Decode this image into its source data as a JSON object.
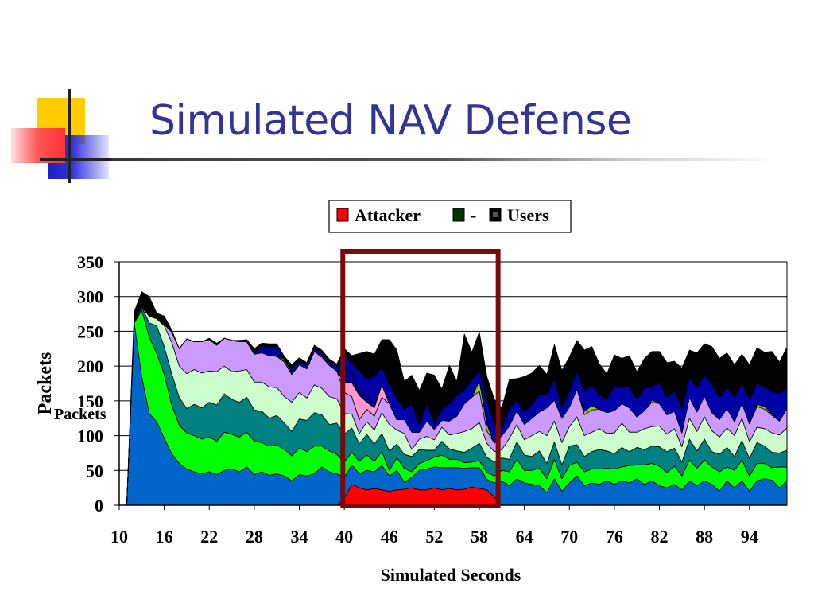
{
  "slide": {
    "title": "Simulated NAV Defense"
  },
  "chart_data": {
    "type": "area",
    "stacked": true,
    "xlabel": "Simulated Seconds",
    "ylabel": "Packets",
    "ylabel_overlay": "Packets",
    "ylim": [
      0,
      350
    ],
    "xlim": [
      10,
      99
    ],
    "yticks": [
      0,
      50,
      100,
      150,
      200,
      250,
      300,
      350
    ],
    "xticks": [
      10,
      16,
      22,
      28,
      34,
      40,
      46,
      52,
      58,
      64,
      70,
      76,
      82,
      88,
      94
    ],
    "grid": true,
    "legend": {
      "placement": "top-center",
      "entries": [
        "Attacker",
        "-",
        "Users"
      ]
    },
    "highlight": {
      "x_range": [
        39.8,
        60.5
      ],
      "color": "#7a0a0a"
    },
    "x": [
      10,
      11,
      12,
      13,
      14,
      15,
      16,
      17,
      18,
      19,
      20,
      21,
      22,
      23,
      24,
      25,
      26,
      27,
      28,
      29,
      30,
      31,
      32,
      33,
      34,
      35,
      36,
      37,
      38,
      39,
      40,
      41,
      42,
      43,
      44,
      45,
      46,
      47,
      48,
      49,
      50,
      51,
      52,
      53,
      54,
      55,
      56,
      57,
      58,
      59,
      60,
      61,
      62,
      63,
      64,
      65,
      66,
      67,
      68,
      69,
      70,
      71,
      72,
      73,
      74,
      75,
      76,
      77,
      78,
      79,
      80,
      81,
      82,
      83,
      84,
      85,
      86,
      87,
      88,
      89,
      90,
      91,
      92,
      93,
      94,
      95,
      96,
      97,
      98,
      99
    ],
    "series": [
      {
        "name": "Attacker",
        "color": "#ff0000",
        "values": [
          0,
          0,
          0,
          0,
          0,
          0,
          0,
          0,
          0,
          0,
          0,
          0,
          0,
          0,
          0,
          0,
          0,
          0,
          0,
          0,
          0,
          0,
          0,
          0,
          0,
          0,
          0,
          0,
          0,
          0,
          10,
          30,
          25,
          22,
          24,
          22,
          20,
          22,
          23,
          25,
          22,
          22,
          25,
          22,
          24,
          22,
          23,
          26,
          24,
          22,
          12,
          0,
          0,
          0,
          0,
          0,
          0,
          0,
          0,
          0,
          0,
          0,
          0,
          0,
          0,
          0,
          0,
          0,
          0,
          0,
          0,
          0,
          0,
          0,
          0,
          0,
          0,
          0,
          0,
          0,
          0,
          0,
          0,
          0,
          0,
          0,
          0,
          0,
          0,
          0
        ]
      },
      {
        "values": [
          0,
          0,
          262,
          185,
          132,
          120,
          96,
          74,
          60,
          52,
          48,
          45,
          48,
          44,
          50,
          52,
          48,
          55,
          44,
          48,
          43,
          45,
          42,
          35,
          44,
          42,
          45,
          55,
          48,
          45,
          30,
          28,
          20,
          28,
          24,
          35,
          22,
          28,
          10,
          15,
          28,
          30,
          30,
          32,
          30,
          32,
          30,
          28,
          30,
          15,
          20,
          35,
          28,
          38,
          32,
          30,
          28,
          18,
          38,
          20,
          32,
          42,
          28,
          32,
          30,
          35,
          30,
          35,
          32,
          38,
          30,
          35,
          28,
          25,
          30,
          22,
          35,
          28,
          35,
          30,
          20,
          35,
          25,
          35,
          20,
          35,
          38,
          36,
          25,
          35
        ]
      },
      {
        "values": [
          0,
          0,
          0,
          95,
          110,
          98,
          92,
          70,
          55,
          52,
          52,
          50,
          50,
          48,
          55,
          50,
          50,
          50,
          48,
          42,
          42,
          42,
          38,
          36,
          38,
          35,
          40,
          30,
          30,
          28,
          22,
          18,
          18,
          22,
          15,
          20,
          8,
          18,
          20,
          8,
          10,
          12,
          14,
          18,
          12,
          12,
          8,
          8,
          10,
          10,
          10,
          15,
          20,
          28,
          18,
          20,
          25,
          20,
          28,
          18,
          25,
          20,
          20,
          20,
          22,
          18,
          22,
          20,
          25,
          20,
          28,
          25,
          28,
          22,
          26,
          20,
          30,
          25,
          30,
          25,
          28,
          20,
          25,
          30,
          22,
          25,
          22,
          18,
          30,
          20
        ]
      },
      {
        "values": [
          0,
          0,
          0,
          5,
          20,
          40,
          40,
          45,
          40,
          35,
          45,
          45,
          50,
          52,
          55,
          50,
          50,
          50,
          45,
          45,
          40,
          42,
          38,
          35,
          42,
          45,
          48,
          45,
          38,
          45,
          40,
          35,
          25,
          30,
          25,
          26,
          28,
          20,
          20,
          22,
          20,
          15,
          10,
          20,
          15,
          12,
          15,
          20,
          25,
          22,
          20,
          18,
          18,
          25,
          22,
          20,
          25,
          22,
          25,
          20,
          28,
          25,
          22,
          25,
          28,
          25,
          22,
          28,
          20,
          25,
          22,
          25,
          28,
          30,
          26,
          20,
          30,
          25,
          30,
          22,
          25,
          28,
          20,
          28,
          25,
          30,
          25,
          22,
          20,
          24
        ]
      },
      {
        "values": [
          0,
          0,
          0,
          0,
          10,
          10,
          30,
          45,
          45,
          50,
          50,
          50,
          45,
          48,
          40,
          40,
          45,
          40,
          40,
          42,
          45,
          40,
          38,
          42,
          38,
          32,
          40,
          38,
          40,
          35,
          30,
          20,
          15,
          18,
          20,
          30,
          38,
          20,
          30,
          10,
          15,
          20,
          15,
          20,
          20,
          25,
          30,
          28,
          30,
          20,
          15,
          12,
          30,
          25,
          22,
          30,
          28,
          40,
          30,
          32,
          28,
          40,
          30,
          28,
          30,
          25,
          30,
          35,
          28,
          22,
          30,
          28,
          30,
          25,
          28,
          22,
          30,
          28,
          32,
          30,
          25,
          28,
          30,
          32,
          24,
          22,
          25,
          28,
          26,
          32
        ]
      },
      {
        "values": [
          0,
          0,
          0,
          0,
          0,
          0,
          2,
          15,
          25,
          50,
          40,
          45,
          45,
          38,
          40,
          45,
          42,
          40,
          40,
          42,
          45,
          45,
          50,
          40,
          40,
          42,
          48,
          45,
          45,
          40,
          30,
          25,
          20,
          18,
          20,
          22,
          30,
          15,
          20,
          25,
          10,
          22,
          15,
          10,
          20,
          25,
          40,
          45,
          45,
          18,
          12,
          20,
          18,
          20,
          22,
          25,
          28,
          40,
          30,
          35,
          28,
          40,
          30,
          32,
          28,
          30,
          32,
          28,
          35,
          22,
          26,
          35,
          32,
          28,
          25,
          20,
          30,
          28,
          30,
          26,
          25,
          28,
          20,
          22,
          26,
          30,
          28,
          25,
          20,
          28
        ]
      },
      {
        "values": [
          0,
          0,
          0,
          0,
          0,
          0,
          0,
          0,
          0,
          0,
          0,
          0,
          0,
          0,
          0,
          0,
          0,
          0,
          0,
          0,
          0,
          0,
          0,
          0,
          0,
          0,
          0,
          0,
          0,
          0,
          0,
          0,
          0,
          0,
          0,
          0,
          0,
          0,
          0,
          0,
          0,
          0,
          0,
          0,
          0,
          0,
          0,
          0,
          15,
          10,
          0,
          0,
          0,
          0,
          0,
          0,
          0,
          0,
          0,
          0,
          0,
          0,
          5,
          6,
          0,
          0,
          0,
          0,
          0,
          0,
          0,
          3,
          0,
          0,
          0,
          0,
          0,
          0,
          0,
          0,
          0,
          0,
          0,
          0,
          0,
          3,
          4,
          2,
          0,
          0
        ]
      },
      {
        "values": [
          0,
          0,
          0,
          0,
          0,
          0,
          0,
          0,
          0,
          0,
          0,
          0,
          0,
          0,
          0,
          0,
          0,
          0,
          0,
          0,
          0,
          0,
          0,
          0,
          0,
          0,
          0,
          0,
          0,
          0,
          15,
          20,
          35,
          10,
          12,
          18,
          0,
          0,
          0,
          0,
          0,
          0,
          0,
          0,
          0,
          0,
          0,
          0,
          0,
          0,
          0,
          0,
          0,
          0,
          0,
          0,
          0,
          0,
          0,
          0,
          0,
          0,
          0,
          0,
          0,
          0,
          0,
          0,
          0,
          0,
          0,
          0,
          0,
          0,
          0,
          0,
          0,
          0,
          0,
          0,
          0,
          0,
          0,
          0,
          0,
          0,
          0,
          0,
          0,
          0
        ]
      },
      {
        "values": [
          0,
          0,
          0,
          0,
          0,
          0,
          0,
          0,
          0,
          0,
          0,
          0,
          0,
          0,
          0,
          0,
          0,
          0,
          0,
          0,
          0,
          0,
          5,
          3,
          0,
          0,
          0,
          0,
          0,
          0,
          0,
          0,
          0,
          0,
          0,
          0,
          0,
          0,
          0,
          0,
          0,
          0,
          0,
          0,
          0,
          0,
          0,
          0,
          0,
          0,
          0,
          0,
          0,
          0,
          0,
          0,
          0,
          0,
          0,
          0,
          0,
          0,
          0,
          0,
          0,
          0,
          0,
          0,
          0,
          0,
          0,
          0,
          0,
          0,
          0,
          0,
          0,
          0,
          0,
          0,
          0,
          0,
          0,
          0,
          0,
          0,
          0,
          0,
          0,
          0
        ]
      },
      {
        "values": [
          0,
          0,
          0,
          0,
          0,
          0,
          0,
          0,
          0,
          0,
          0,
          0,
          0,
          0,
          0,
          0,
          0,
          0,
          0,
          10,
          12,
          15,
          0,
          0,
          0,
          0,
          0,
          0,
          0,
          0,
          20,
          15,
          5,
          8,
          5,
          0,
          0,
          0,
          0,
          0,
          0,
          0,
          0,
          0,
          0,
          0,
          0,
          0,
          0,
          0,
          0,
          0,
          0,
          0,
          0,
          0,
          0,
          0,
          0,
          0,
          0,
          0,
          0,
          0,
          0,
          0,
          0,
          0,
          0,
          0,
          0,
          0,
          0,
          0,
          0,
          0,
          0,
          0,
          0,
          0,
          0,
          0,
          0,
          0,
          0,
          0,
          0,
          0,
          0,
          0
        ]
      },
      {
        "values": [
          0,
          0,
          0,
          0,
          0,
          0,
          0,
          0,
          0,
          0,
          0,
          0,
          0,
          0,
          0,
          0,
          0,
          0,
          0,
          0,
          0,
          0,
          0,
          6,
          4,
          5,
          4,
          4,
          6,
          5,
          20,
          12,
          30,
          25,
          40,
          25,
          28,
          30,
          15,
          40,
          10,
          25,
          8,
          15,
          25,
          30,
          20,
          25,
          15,
          35,
          25,
          10,
          25,
          15,
          18,
          20,
          25,
          18,
          30,
          15,
          22,
          25,
          28,
          30,
          20,
          20,
          35,
          25,
          30,
          25,
          32,
          20,
          30,
          25,
          30,
          35,
          28,
          35,
          30,
          40,
          32,
          30,
          35,
          28,
          35,
          30,
          28,
          32,
          40,
          30
        ]
      },
      {
        "values": [
          0,
          0,
          16,
          22,
          28,
          8,
          12,
          3,
          0,
          0,
          0,
          0,
          2,
          3,
          0,
          0,
          2,
          3,
          8,
          4,
          5,
          3,
          3,
          5,
          6,
          4,
          5,
          6,
          3,
          5,
          8,
          12,
          25,
          40,
          32,
          40,
          64,
          70,
          40,
          42,
          50,
          44,
          70,
          30,
          55,
          20,
          80,
          40,
          55,
          33,
          38,
          30,
          42,
          31,
          51,
          45,
          42,
          30,
          50,
          54,
          50,
          45,
          60,
          55,
          45,
          36,
          45,
          40,
          45,
          40,
          43,
          50,
          45,
          50,
          42,
          58,
          40,
          50,
          45,
          55,
          56,
          50,
          47,
          42,
          50,
          51,
          50,
          58,
          45,
          58
        ]
      }
    ]
  }
}
